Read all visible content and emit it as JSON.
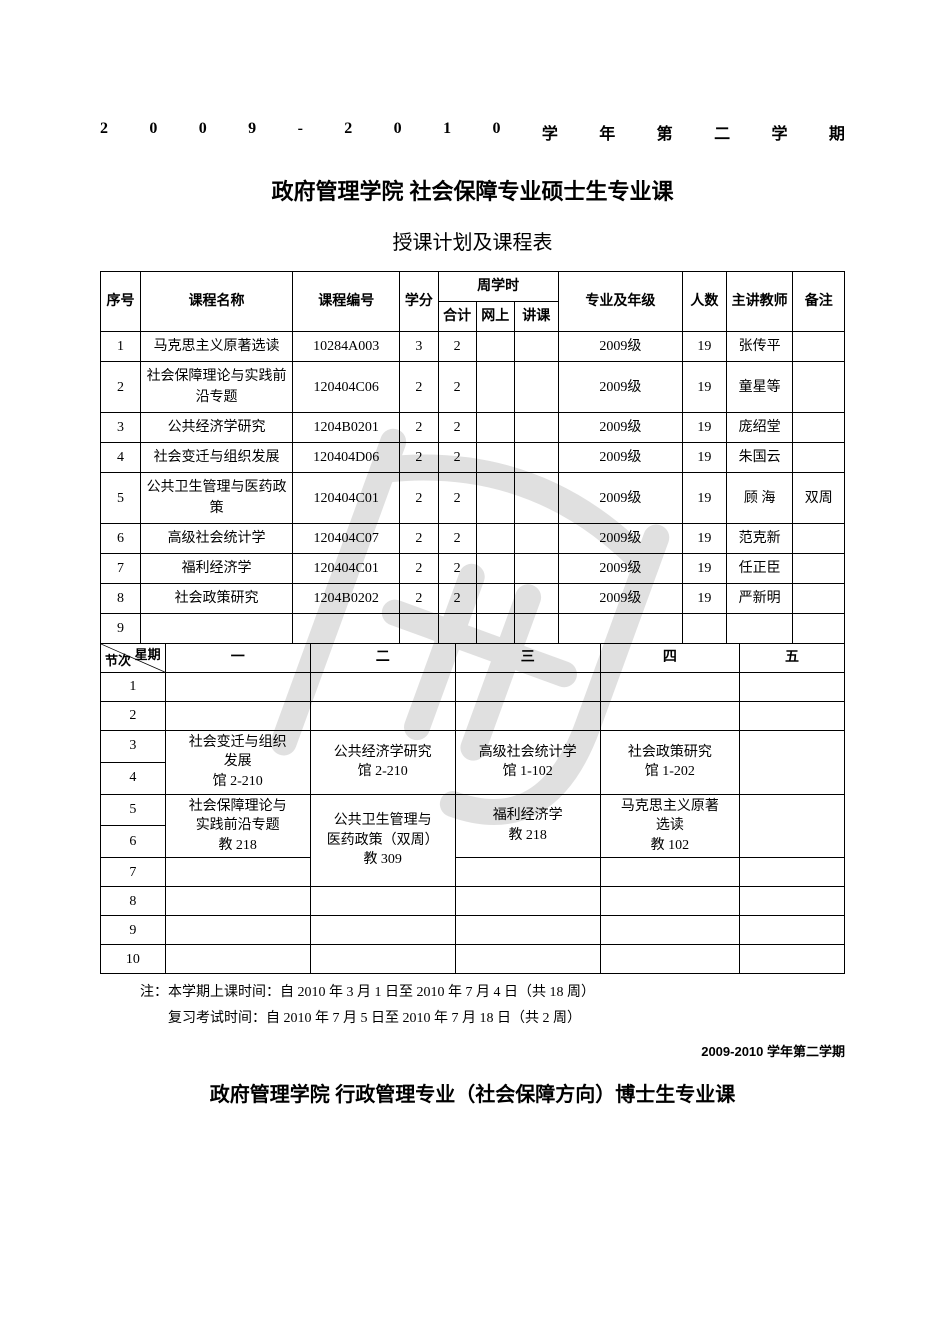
{
  "header_year_chars": [
    "2",
    "0",
    "0",
    "9",
    "-",
    "2",
    "0",
    "1",
    "0",
    "学",
    "年",
    "第",
    "二",
    "学",
    "期"
  ],
  "title1": "政府管理学院 社会保障专业硕士生专业课",
  "title2": "授课计划及课程表",
  "course_headers": {
    "idx": "序号",
    "name": "课程名称",
    "code": "课程编号",
    "credit": "学分",
    "weekly_group": "周学时",
    "w1": "合计",
    "w2": "网上",
    "w3": "讲课",
    "grade": "专业及年级",
    "num": "人数",
    "teacher": "主讲教师",
    "note": "备注"
  },
  "courses": [
    {
      "idx": "1",
      "name": "马克思主义原著选读",
      "code": "10284A003",
      "credit": "3",
      "w1": "2",
      "w2": "",
      "w3": "",
      "grade": "2009级",
      "num": "19",
      "teacher": "张传平",
      "note": ""
    },
    {
      "idx": "2",
      "name": "社会保障理论与实践前沿专题",
      "code": "120404C06",
      "credit": "2",
      "w1": "2",
      "w2": "",
      "w3": "",
      "grade": "2009级",
      "num": "19",
      "teacher": "童星等",
      "note": ""
    },
    {
      "idx": "3",
      "name": "公共经济学研究",
      "code": "1204B0201",
      "credit": "2",
      "w1": "2",
      "w2": "",
      "w3": "",
      "grade": "2009级",
      "num": "19",
      "teacher": "庞绍堂",
      "note": ""
    },
    {
      "idx": "4",
      "name": "社会变迁与组织发展",
      "code": "120404D06",
      "credit": "2",
      "w1": "2",
      "w2": "",
      "w3": "",
      "grade": "2009级",
      "num": "19",
      "teacher": "朱国云",
      "note": ""
    },
    {
      "idx": "5",
      "name": "公共卫生管理与医药政策",
      "code": "120404C01",
      "credit": "2",
      "w1": "2",
      "w2": "",
      "w3": "",
      "grade": "2009级",
      "num": "19",
      "teacher": "顾 海",
      "note": "双周"
    },
    {
      "idx": "6",
      "name": "高级社会统计学",
      "code": "120404C07",
      "credit": "2",
      "w1": "2",
      "w2": "",
      "w3": "",
      "grade": "2009级",
      "num": "19",
      "teacher": "范克新",
      "note": ""
    },
    {
      "idx": "7",
      "name": "福利经济学",
      "code": "120404C01",
      "credit": "2",
      "w1": "2",
      "w2": "",
      "w3": "",
      "grade": "2009级",
      "num": "19",
      "teacher": "任正臣",
      "note": ""
    },
    {
      "idx": "8",
      "name": "社会政策研究",
      "code": "1204B0202",
      "credit": "2",
      "w1": "2",
      "w2": "",
      "w3": "",
      "grade": "2009级",
      "num": "19",
      "teacher": "严新明",
      "note": ""
    },
    {
      "idx": "9",
      "name": "",
      "code": "",
      "credit": "",
      "w1": "",
      "w2": "",
      "w3": "",
      "grade": "",
      "num": "",
      "teacher": "",
      "note": ""
    }
  ],
  "schedule_header": {
    "diag_top": "星期",
    "diag_bot": "节次",
    "days": [
      "一",
      "二",
      "三",
      "四",
      "五"
    ]
  },
  "periods": [
    "1",
    "2",
    "3",
    "4",
    "5",
    "6",
    "7",
    "8",
    "9",
    "10"
  ],
  "schedule_cells": {
    "mon_3_4": {
      "line1": "社会变迁与组织",
      "line2": "发展",
      "line3": "馆 2-210"
    },
    "tue_3_4": {
      "line1": "公共经济学研究",
      "line2": "馆 2-210"
    },
    "wed_3_4": {
      "line1": "高级社会统计学",
      "line2": "馆 1-102"
    },
    "thu_3_4": {
      "line1": "社会政策研究",
      "line2": "馆 1-202"
    },
    "mon_5_6": {
      "line1": "社会保障理论与",
      "line2": "实践前沿专题",
      "line3": "教 218"
    },
    "tue_5_7": {
      "line1": "公共卫生管理与",
      "line2": "医药政策（双周）",
      "line3": "教 309"
    },
    "wed_5_6": {
      "line1": "福利经济学",
      "line2": "教 218"
    },
    "thu_5_6": {
      "line1": "马克思主义原著",
      "line2": "选读",
      "line3": "教 102"
    }
  },
  "notes": {
    "line1": "注：本学期上课时间：自 2010 年 3 月 1 日至 2010 年 7 月 4 日（共 18 周）",
    "line2": "复习考试时间：自 2010 年 7 月 5 日至 2010 年 7 月 18 日（共 2 周）"
  },
  "sem_label": "2009-2010 学年第二学期",
  "title3": "政府管理学院 行政管理专业（社会保障方向）博士生专业课",
  "watermark": {
    "stroke": "#c8c8c8",
    "opacity": 0.55
  }
}
